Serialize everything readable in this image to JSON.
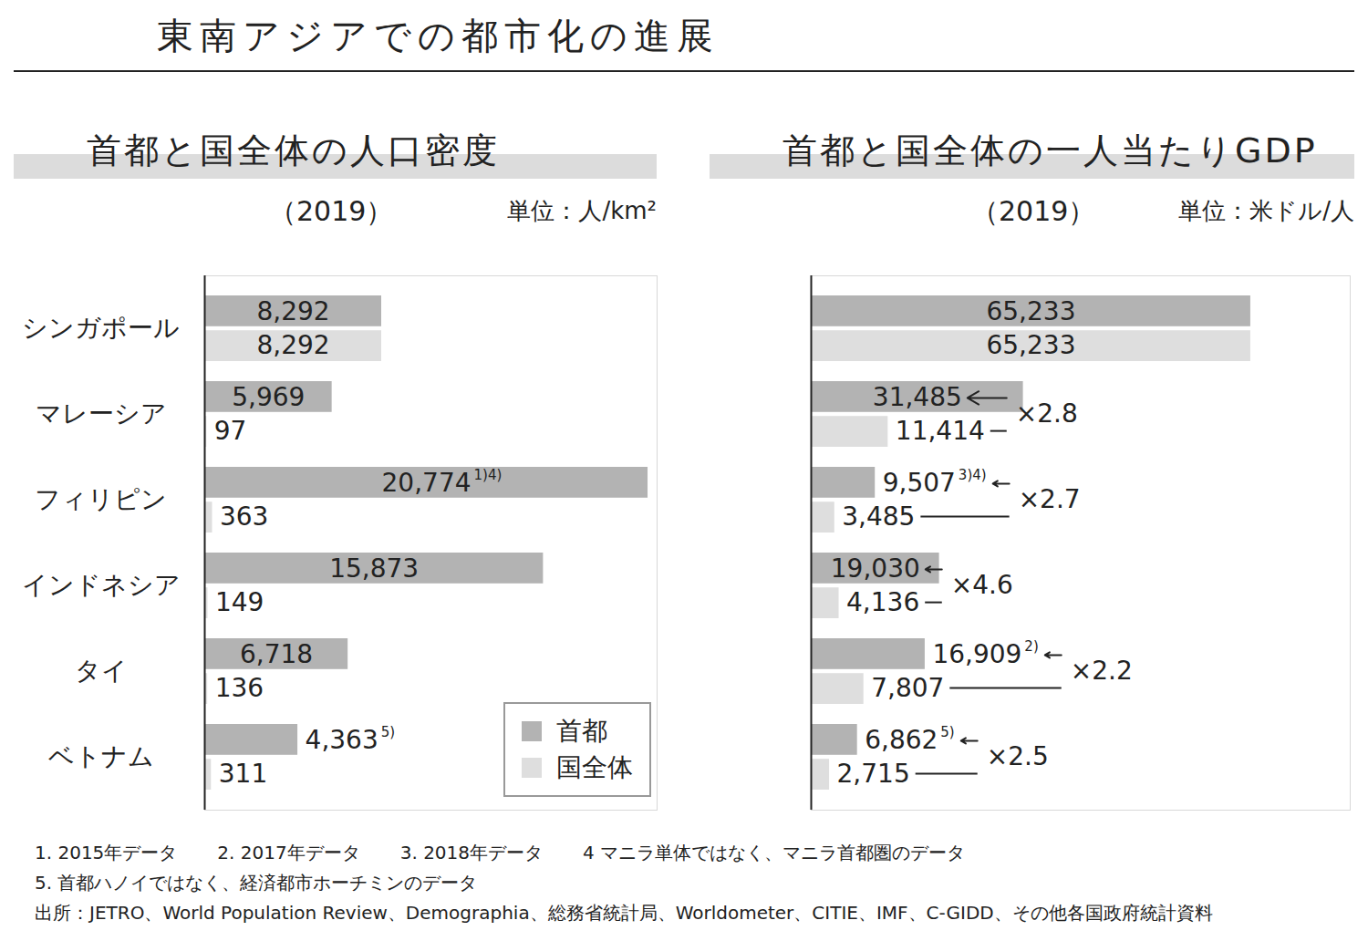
{
  "title": "東南アジアでの都市化の進展",
  "chart_data": [
    {
      "type": "bar",
      "orientation": "horizontal",
      "title": "首都と国全体の人口密度",
      "subtitle": "（2019）",
      "unit": "単位：人/km²",
      "categories": [
        "シンガポール",
        "マレーシア",
        "フィリピン",
        "インドネシア",
        "タイ",
        "ベトナム"
      ],
      "series": [
        {
          "name": "首都",
          "color": "#b3b3b3",
          "values": [
            8292,
            5969,
            20774,
            15873,
            6718,
            4363
          ],
          "value_labels": [
            "8,292",
            "5,969",
            "20,774",
            "15,873",
            "6,718",
            "4,363"
          ],
          "notes": [
            null,
            null,
            "1)4)",
            null,
            null,
            "5)"
          ]
        },
        {
          "name": "国全体",
          "color": "#dedede",
          "values": [
            8292,
            97,
            363,
            149,
            136,
            311
          ],
          "value_labels": [
            "8,292",
            "97",
            "363",
            "149",
            "136",
            "311"
          ]
        }
      ],
      "xlim": [
        0,
        21200
      ],
      "data_labels": true,
      "tick_labels": "y",
      "legend": "bottom-right"
    },
    {
      "type": "bar",
      "orientation": "horizontal",
      "title": "首都と国全体の一人当たりGDP",
      "subtitle": "（2019）",
      "unit": "単位：米ドル/人",
      "categories": [
        "シンガポール",
        "マレーシア",
        "フィリピン",
        "インドネシア",
        "タイ",
        "ベトナム"
      ],
      "series": [
        {
          "name": "首都",
          "color": "#b3b3b3",
          "values": [
            65233,
            31485,
            9507,
            19030,
            16909,
            6862
          ],
          "value_labels": [
            "65,233",
            "31,485",
            "9,507",
            "19,030",
            "16,909",
            "6,862"
          ],
          "notes": [
            null,
            null,
            "3)4)",
            null,
            "2)",
            "5)"
          ]
        },
        {
          "name": "国全体",
          "color": "#dedede",
          "values": [
            65233,
            11414,
            3485,
            4136,
            7807,
            2715
          ],
          "value_labels": [
            "65,233",
            "11,414",
            "3,485",
            "4,136",
            "7,807",
            "2,715"
          ]
        }
      ],
      "ratios": [
        null,
        2.8,
        2.7,
        4.6,
        2.2,
        2.5
      ],
      "ratio_labels": [
        null,
        "×2.8",
        "×2.7",
        "×4.6",
        "×2.2",
        "×2.5"
      ],
      "xlim": [
        0,
        80000
      ],
      "data_labels": true,
      "tick_labels": false
    }
  ],
  "notes": [
    "1. 2015年データ",
    "2. 2017年データ",
    "3. 2018年データ",
    "4 マニラ単体ではなく、マニラ首都圏のデータ",
    "5. 首都ハノイではなく、経済都市ホーチミンのデータ"
  ],
  "source": "出所：JETRO、World Population Review、Demographia、総務省統計局、Worldometer、CITIE、IMF、C-GIDD、その他各国政府統計資料"
}
